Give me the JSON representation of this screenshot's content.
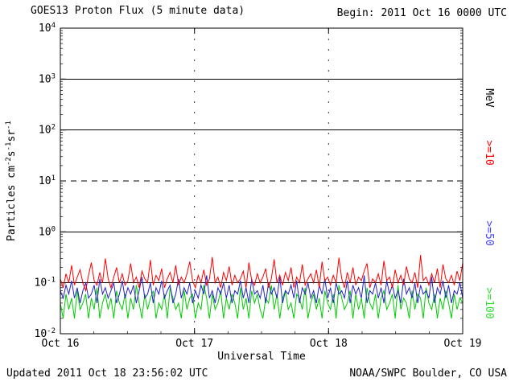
{
  "header": {
    "title": "GOES13 Proton Flux (5 minute data)",
    "begin": "Begin: 2011 Oct 16 0000 UTC"
  },
  "footer": {
    "updated": "Updated 2011 Oct 18 23:56:02 UTC",
    "credit": "NOAA/SWPC Boulder, CO USA"
  },
  "chart_data": {
    "type": "line",
    "title": "GOES13 Proton Flux (5 minute data)",
    "xlabel": "Universal Time",
    "ylabel": "Particles cm-2s-1sr-1",
    "ylabel_parts": [
      [
        "t",
        "Particles cm"
      ],
      [
        "sup",
        "-2"
      ],
      [
        "t",
        "s"
      ],
      [
        "sup",
        "-1"
      ],
      [
        "t",
        "sr"
      ],
      [
        "sup",
        "-1"
      ]
    ],
    "yscale": "log",
    "ylim": [
      0.01,
      10000
    ],
    "y_ticks": [
      "10^4",
      "10^3",
      "10^2",
      "10^1",
      "10^0",
      "10^-1",
      "10^-2"
    ],
    "y_tick_exponents": [
      4,
      3,
      2,
      1,
      0,
      -1,
      -2
    ],
    "x_ticks": [
      "Oct 16",
      "Oct 17",
      "Oct 18",
      "Oct 19"
    ],
    "x_range_days": 3,
    "grid": {
      "solid_lines": [
        1000,
        100,
        1,
        0.1
      ],
      "dashed_lines": [
        10
      ],
      "vertical_dotted_days": [
        1,
        2
      ]
    },
    "legend": {
      "position": "right",
      "unit_label": "MeV",
      "unit_color": "#000000",
      "entries": [
        {
          "label": ">=10",
          "color": "#ff0000"
        },
        {
          "label": ">=50",
          "color": "#4444ff"
        },
        {
          "label": ">=100",
          "color": "#33dd33"
        }
      ]
    },
    "series": [
      {
        "name": ">=10 MeV",
        "color": "#ff0000",
        "values": [
          0.12,
          0.08,
          0.15,
          0.1,
          0.22,
          0.09,
          0.13,
          0.18,
          0.1,
          0.07,
          0.14,
          0.25,
          0.11,
          0.09,
          0.16,
          0.1,
          0.3,
          0.12,
          0.08,
          0.13,
          0.2,
          0.1,
          0.15,
          0.09,
          0.11,
          0.24,
          0.1,
          0.13,
          0.08,
          0.17,
          0.12,
          0.1,
          0.28,
          0.09,
          0.14,
          0.11,
          0.19,
          0.08,
          0.12,
          0.16,
          0.1,
          0.22,
          0.09,
          0.13,
          0.1,
          0.15,
          0.26,
          0.11,
          0.08,
          0.14,
          0.1,
          0.18,
          0.09,
          0.12,
          0.32,
          0.1,
          0.13,
          0.08,
          0.16,
          0.11,
          0.21,
          0.09,
          0.14,
          0.1,
          0.12,
          0.17,
          0.08,
          0.25,
          0.11,
          0.09,
          0.15,
          0.1,
          0.13,
          0.19,
          0.08,
          0.12,
          0.29,
          0.1,
          0.14,
          0.09,
          0.16,
          0.11,
          0.2,
          0.08,
          0.13,
          0.1,
          0.23,
          0.09,
          0.12,
          0.15,
          0.1,
          0.18,
          0.08,
          0.26,
          0.11,
          0.13,
          0.09,
          0.14,
          0.1,
          0.31,
          0.12,
          0.08,
          0.16,
          0.1,
          0.2,
          0.09,
          0.13,
          0.11,
          0.17,
          0.24,
          0.08,
          0.12,
          0.1,
          0.15,
          0.09,
          0.27,
          0.11,
          0.13,
          0.08,
          0.18,
          0.1,
          0.14,
          0.09,
          0.21,
          0.12,
          0.1,
          0.16,
          0.08,
          0.35,
          0.11,
          0.13,
          0.09,
          0.15,
          0.1,
          0.19,
          0.08,
          0.23,
          0.12,
          0.1,
          0.14,
          0.09,
          0.17,
          0.11,
          0.25
        ]
      },
      {
        "name": ">=50 MeV",
        "color": "#2222cc",
        "values": [
          0.07,
          0.05,
          0.09,
          0.06,
          0.11,
          0.05,
          0.08,
          0.04,
          0.07,
          0.1,
          0.05,
          0.06,
          0.09,
          0.04,
          0.12,
          0.06,
          0.08,
          0.05,
          0.07,
          0.1,
          0.04,
          0.06,
          0.11,
          0.05,
          0.08,
          0.06,
          0.09,
          0.04,
          0.07,
          0.13,
          0.05,
          0.06,
          0.1,
          0.04,
          0.08,
          0.06,
          0.11,
          0.05,
          0.07,
          0.09,
          0.04,
          0.06,
          0.12,
          0.05,
          0.08,
          0.06,
          0.1,
          0.04,
          0.07,
          0.05,
          0.09,
          0.06,
          0.14,
          0.05,
          0.07,
          0.04,
          0.08,
          0.06,
          0.1,
          0.05,
          0.09,
          0.04,
          0.07,
          0.06,
          0.11,
          0.05,
          0.08,
          0.04,
          0.12,
          0.06,
          0.07,
          0.05,
          0.09,
          0.04,
          0.1,
          0.06,
          0.08,
          0.05,
          0.13,
          0.04,
          0.07,
          0.06,
          0.09,
          0.05,
          0.11,
          0.04,
          0.08,
          0.06,
          0.1,
          0.05,
          0.07,
          0.04,
          0.09,
          0.06,
          0.12,
          0.05,
          0.08,
          0.04,
          0.1,
          0.06,
          0.07,
          0.05,
          0.11,
          0.04,
          0.09,
          0.06,
          0.08,
          0.05,
          0.14,
          0.04,
          0.07,
          0.06,
          0.1,
          0.05,
          0.08,
          0.04,
          0.11,
          0.06,
          0.09,
          0.05,
          0.07,
          0.04,
          0.12,
          0.06,
          0.08,
          0.05,
          0.1,
          0.04,
          0.09,
          0.06,
          0.07,
          0.05,
          0.13,
          0.04,
          0.08,
          0.06,
          0.11,
          0.05,
          0.09,
          0.04,
          0.07,
          0.06,
          0.1,
          0.05
        ]
      },
      {
        "name": ">=100 MeV",
        "color": "#00cc00",
        "values": [
          0.04,
          0.02,
          0.06,
          0.03,
          0.05,
          0.02,
          0.07,
          0.03,
          0.04,
          0.06,
          0.02,
          0.05,
          0.03,
          0.08,
          0.02,
          0.04,
          0.06,
          0.03,
          0.05,
          0.02,
          0.07,
          0.04,
          0.03,
          0.06,
          0.02,
          0.05,
          0.03,
          0.09,
          0.04,
          0.02,
          0.06,
          0.03,
          0.05,
          0.07,
          0.02,
          0.04,
          0.03,
          0.06,
          0.02,
          0.08,
          0.05,
          0.03,
          0.04,
          0.02,
          0.07,
          0.03,
          0.05,
          0.06,
          0.02,
          0.04,
          0.03,
          0.09,
          0.05,
          0.02,
          0.06,
          0.03,
          0.04,
          0.07,
          0.02,
          0.05,
          0.03,
          0.06,
          0.04,
          0.02,
          0.08,
          0.03,
          0.05,
          0.02,
          0.07,
          0.04,
          0.06,
          0.03,
          0.02,
          0.05,
          0.04,
          0.09,
          0.03,
          0.06,
          0.02,
          0.05,
          0.07,
          0.03,
          0.04,
          0.02,
          0.06,
          0.05,
          0.03,
          0.08,
          0.02,
          0.04,
          0.06,
          0.03,
          0.05,
          0.02,
          0.07,
          0.04,
          0.03,
          0.06,
          0.02,
          0.09,
          0.05,
          0.03,
          0.04,
          0.07,
          0.02,
          0.06,
          0.03,
          0.05,
          0.02,
          0.08,
          0.04,
          0.03,
          0.06,
          0.02,
          0.05,
          0.07,
          0.03,
          0.04,
          0.06,
          0.02,
          0.09,
          0.03,
          0.05,
          0.04,
          0.02,
          0.07,
          0.03,
          0.06,
          0.05,
          0.02,
          0.08,
          0.04,
          0.03,
          0.06,
          0.02,
          0.05,
          0.03,
          0.07,
          0.04,
          0.02,
          0.06,
          0.03,
          0.05,
          0.04
        ]
      }
    ]
  }
}
